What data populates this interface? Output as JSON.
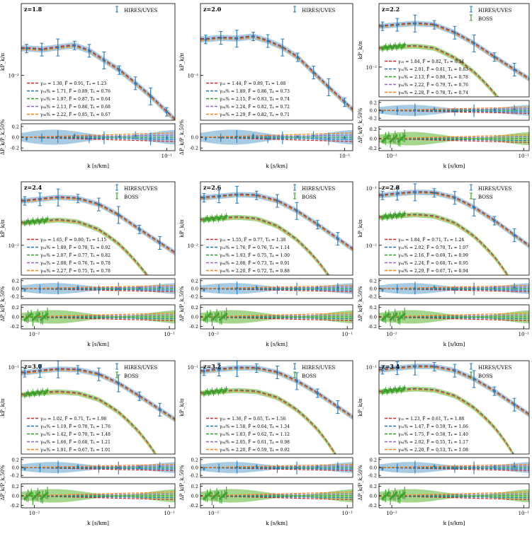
{
  "figure": {
    "x_axis_label": "k [s/km]",
    "y_axis_label_main": "kP_k/π",
    "y_axis_label_ratio": "ΔP_k/P_k,50%",
    "legend_hires": "HIRES/UVES",
    "legend_boss": "BOSS",
    "colors": {
      "hires": "#2b7bba",
      "boss": "#3aa02a",
      "band_hires": "#a6cbe3",
      "band_boss": "#a4d68e",
      "q25": "#d62728",
      "q16": "#1f77b4",
      "q50": "#2ca02c",
      "q84": "#9467bd",
      "q98": "#ff7f0e"
    }
  },
  "chart_data": [
    {
      "type": "line",
      "title": "z=1.8",
      "boss": false,
      "x_ticks": [
        "10⁻¹"
      ],
      "y_ticks": [
        "10⁻²"
      ],
      "ratio_ticks": [
        "0.2",
        "0.0",
        "-0.2"
      ],
      "xlim": [
        0.004,
        0.12
      ],
      "legend_lines": [
        "γ₂₅ = 1.30, F̄ = 0.91, T₄ = 1.23",
        "γ₁₆% = 1.71, F̄ = 0.89, T₄ = 0.76",
        "γ₅₀% = 1.97, F̄ = 0.87, T₄ = 0.64",
        "γ₈₄% = 2.13, F̄ = 0.86, T₄ = 0.68",
        "γ₉₈% = 2.22, F̄ = 0.85, T₄ = 0.67"
      ],
      "hires_k": [
        0.0045,
        0.0063,
        0.009,
        0.013,
        0.018,
        0.025,
        0.035,
        0.05,
        0.07,
        0.1
      ],
      "hires_val": [
        0.026,
        0.025,
        0.027,
        0.029,
        0.024,
        0.017,
        0.012,
        0.0075,
        0.0047,
        0.0027
      ]
    },
    {
      "type": "line",
      "title": "z=2.0",
      "boss": false,
      "x_ticks": [
        "10⁻¹"
      ],
      "y_ticks": [
        "10⁻²"
      ],
      "ratio_ticks": [
        "0.0",
        "-0.2"
      ],
      "xlim": [
        0.004,
        0.12
      ],
      "legend_lines": [
        "γ₂₅ = 1.44, F̄ = 0.89, T₄ = 1.08",
        "γ₁₆% = 1.89, F̄ = 0.86, T₄ = 0.73",
        "γ₅₀% = 2.15, F̄ = 0.83, T₄ = 0.74",
        "γ₈₄% = 2.24, F̄ = 0.82, T₄ = 0.72",
        "γ₉₈% = 2.29, F̄ = 0.82, T₄ = 0.71"
      ],
      "hires_k": [
        0.0045,
        0.0063,
        0.009,
        0.013,
        0.018,
        0.025,
        0.035,
        0.05,
        0.07,
        0.1
      ],
      "hires_val": [
        0.036,
        0.038,
        0.037,
        0.04,
        0.034,
        0.027,
        0.019,
        0.011,
        0.0065,
        0.0038
      ]
    },
    {
      "type": "line",
      "title": "z=2.2",
      "boss": true,
      "x_ticks": [
        "10⁻²",
        "10⁻¹"
      ],
      "y_ticks": [
        "10⁻²"
      ],
      "ratio_ticks": [
        "0.2",
        "0.0",
        "-0.2"
      ],
      "boss_ticks": [
        "0.2",
        "0.0",
        "-0.2"
      ],
      "xlim": [
        0.008,
        0.11
      ],
      "legend_lines": [
        "γ₂₅ = 1.84, F̄ = 0.82, T₄ = 0.94",
        "γ₁₆% = 2.01, F̄ = 0.81, T₄ = 0.83",
        "γ₅₀% = 2.13, F̄ = 0.80, T₄ = 0.78",
        "γ₈₄% = 2.22, F̄ = 0.79, T₄ = 0.76",
        "γ₉₈% = 2.28, F̄ = 0.78, T₄ = 0.74"
      ],
      "hires_k": [
        0.0085,
        0.011,
        0.015,
        0.021,
        0.03,
        0.042,
        0.06,
        0.085
      ],
      "hires_val": [
        0.052,
        0.055,
        0.058,
        0.055,
        0.04,
        0.026,
        0.015,
        0.009
      ]
    },
    {
      "type": "line",
      "title": "z=2.4",
      "boss": true,
      "x_ticks": [
        "10⁻²",
        "10⁻¹"
      ],
      "y_ticks": [
        "10⁻²"
      ],
      "ratio_ticks": [
        "0.2",
        "0.0",
        "-0.2"
      ],
      "boss_ticks": [
        "0.2",
        "0.0",
        "-0.2"
      ],
      "xlim": [
        0.008,
        0.11
      ],
      "legend_lines": [
        "γ₂₅ = 1.65, F̄ = 0.80, T₄ = 1.15",
        "γ₁₆% = 1.89, F̄ = 0.78, T₄ = 0.92",
        "γ₅₀% = 2.07, F̄ = 0.77, T₄ = 0.82",
        "γ₈₄% = 2.08, F̄ = 0.76, T₄ = 0.78",
        "γ₉₈% = 2.27, F̄ = 0.75, T₄ = 0.78"
      ],
      "hires_k": [
        0.0085,
        0.011,
        0.015,
        0.021,
        0.03,
        0.042,
        0.06,
        0.085
      ],
      "hires_val": [
        0.06,
        0.064,
        0.069,
        0.066,
        0.052,
        0.034,
        0.019,
        0.011
      ]
    },
    {
      "type": "line",
      "title": "z=2.6",
      "boss": true,
      "x_ticks": [
        "10⁻²",
        "10⁻¹"
      ],
      "y_ticks": [
        "10⁻²"
      ],
      "ratio_ticks": [
        "0.2",
        "0.0",
        "-0.2"
      ],
      "boss_ticks": [
        "0.2",
        "0.0",
        "-0.2"
      ],
      "xlim": [
        0.008,
        0.11
      ],
      "legend_lines": [
        "γ₂₅ = 1.55, F̄ = 0.77, T₄ = 1.38",
        "γ₁₆% = 1.76, F̄ = 0.76, T₄ = 1.14",
        "γ₅₀% = 1.93, F̄ = 0.75, T₄ = 1.00",
        "γ₈₄% = 2.08, F̄ = 0.73, T₄ = 0.91",
        "γ₉₈% = 2.20, F̄ = 0.72, T₄ = 0.88"
      ],
      "hires_k": [
        0.0085,
        0.011,
        0.015,
        0.021,
        0.03,
        0.042,
        0.06,
        0.085
      ],
      "hires_val": [
        0.068,
        0.072,
        0.077,
        0.075,
        0.06,
        0.04,
        0.023,
        0.013
      ]
    },
    {
      "type": "line",
      "title": "z=2.8",
      "boss": true,
      "x_ticks": [
        "10⁻²",
        "10⁻¹"
      ],
      "y_ticks": [
        "10⁻¹",
        "10⁻²"
      ],
      "ratio_ticks": [
        "0.2",
        "0.0",
        "-0.2"
      ],
      "boss_ticks": [
        "0.2",
        "0.0",
        "-0.2"
      ],
      "xlim": [
        0.008,
        0.11
      ],
      "legend_lines": [
        "γ₂₅ = 1.84, F̄ = 0.71, T₄ = 1.24",
        "γ₁₆% = 2.02, F̄ = 0.70, T₄ = 1.07",
        "γ₅₀% = 2.16, F̄ = 0.69, T₄ = 0.99",
        "γ₈₄% = 2.24, F̄ = 0.68, T₄ = 0.95",
        "γ₉₈% = 2.29, F̄ = 0.67, T₄ = 0.94"
      ],
      "hires_k": [
        0.0085,
        0.011,
        0.015,
        0.021,
        0.03,
        0.042,
        0.06,
        0.085
      ],
      "hires_val": [
        0.075,
        0.08,
        0.085,
        0.083,
        0.068,
        0.046,
        0.027,
        0.015
      ]
    },
    {
      "type": "line",
      "title": "z=3.0",
      "boss": true,
      "x_ticks": [
        "10⁻²",
        "10⁻¹"
      ],
      "y_ticks": [
        "10⁻¹"
      ],
      "ratio_ticks": [
        "0.2",
        "0.0",
        "-0.2"
      ],
      "boss_ticks": [
        "0.2",
        "0.0",
        "-0.2"
      ],
      "xlim": [
        0.008,
        0.11
      ],
      "legend_lines": [
        "γ₂₅ = 1.02, F̄ = 0.71, T₄ = 1.98",
        "γ₁₆% = 1.19, F̄ = 0.70, T₄ = 1.76",
        "γ₅₀% = 1.42, F̄ = 0.70, T₄ = 1.48",
        "γ₈₄% = 1.66, F̄ = 0.68, T₄ = 1.21",
        "γ₉₈% = 1.91, F̄ = 0.67, T₄ = 1.01"
      ],
      "hires_k": [
        0.0085,
        0.011,
        0.015,
        0.021,
        0.03,
        0.042,
        0.06,
        0.085
      ],
      "hires_val": [
        0.08,
        0.086,
        0.092,
        0.09,
        0.075,
        0.052,
        0.031,
        0.018
      ]
    },
    {
      "type": "line",
      "title": "z=3.2",
      "boss": true,
      "x_ticks": [
        "10⁻²",
        "10⁻¹"
      ],
      "y_ticks": [
        "10⁻¹"
      ],
      "ratio_ticks": [
        "0.2",
        "0.0",
        "-0.2"
      ],
      "boss_ticks": [
        "0.2",
        "0.0",
        "-0.2"
      ],
      "xlim": [
        0.008,
        0.11
      ],
      "legend_lines": [
        "γ₂₅ = 1.36, F̄ = 0.65, T₄ = 1.56",
        "γ₁₆% = 1.58, F̄ = 0.64, T₄ = 1.34",
        "γ₅₀% = 1.83, F̄ = 0.62, T₄ = 1.12",
        "γ₈₄% = 2.05, F̄ = 0.61, T₄ = 0.98",
        "γ₉₈% = 2.20, F̄ = 0.59, T₄ = 0.92"
      ],
      "hires_k": [
        0.0085,
        0.011,
        0.015,
        0.021,
        0.03,
        0.042,
        0.06,
        0.085
      ],
      "hires_val": [
        0.085,
        0.091,
        0.097,
        0.096,
        0.081,
        0.057,
        0.035,
        0.02
      ]
    },
    {
      "type": "line",
      "title": "z=3.4",
      "boss": true,
      "x_ticks": [
        "10⁻²",
        "10⁻¹"
      ],
      "y_ticks": [
        "10⁻¹"
      ],
      "ratio_ticks": [
        "0.2",
        "0.0",
        "-0.2"
      ],
      "boss_ticks": [
        "0.2",
        "0.0",
        "-0.2"
      ],
      "xlim": [
        0.008,
        0.11
      ],
      "legend_lines": [
        "γ₂₅ = 1.23, F̄ = 0.61, T₄ = 1.88",
        "γ₁₆% = 1.47, F̄ = 0.59, T₄ = 1.66",
        "γ₅₀% = 1.75, F̄ = 0.58, T₄ = 1.40",
        "γ₈₄% = 2.02, F̄ = 0.55, T₄ = 1.17",
        "γ₉₈% = 2.20, F̄ = 0.53, T₄ = 1.08"
      ],
      "hires_k": [
        0.0085,
        0.011,
        0.015,
        0.021,
        0.03,
        0.042,
        0.06,
        0.085
      ],
      "hires_val": [
        0.09,
        0.096,
        0.103,
        0.102,
        0.087,
        0.062,
        0.038,
        0.022
      ]
    }
  ]
}
